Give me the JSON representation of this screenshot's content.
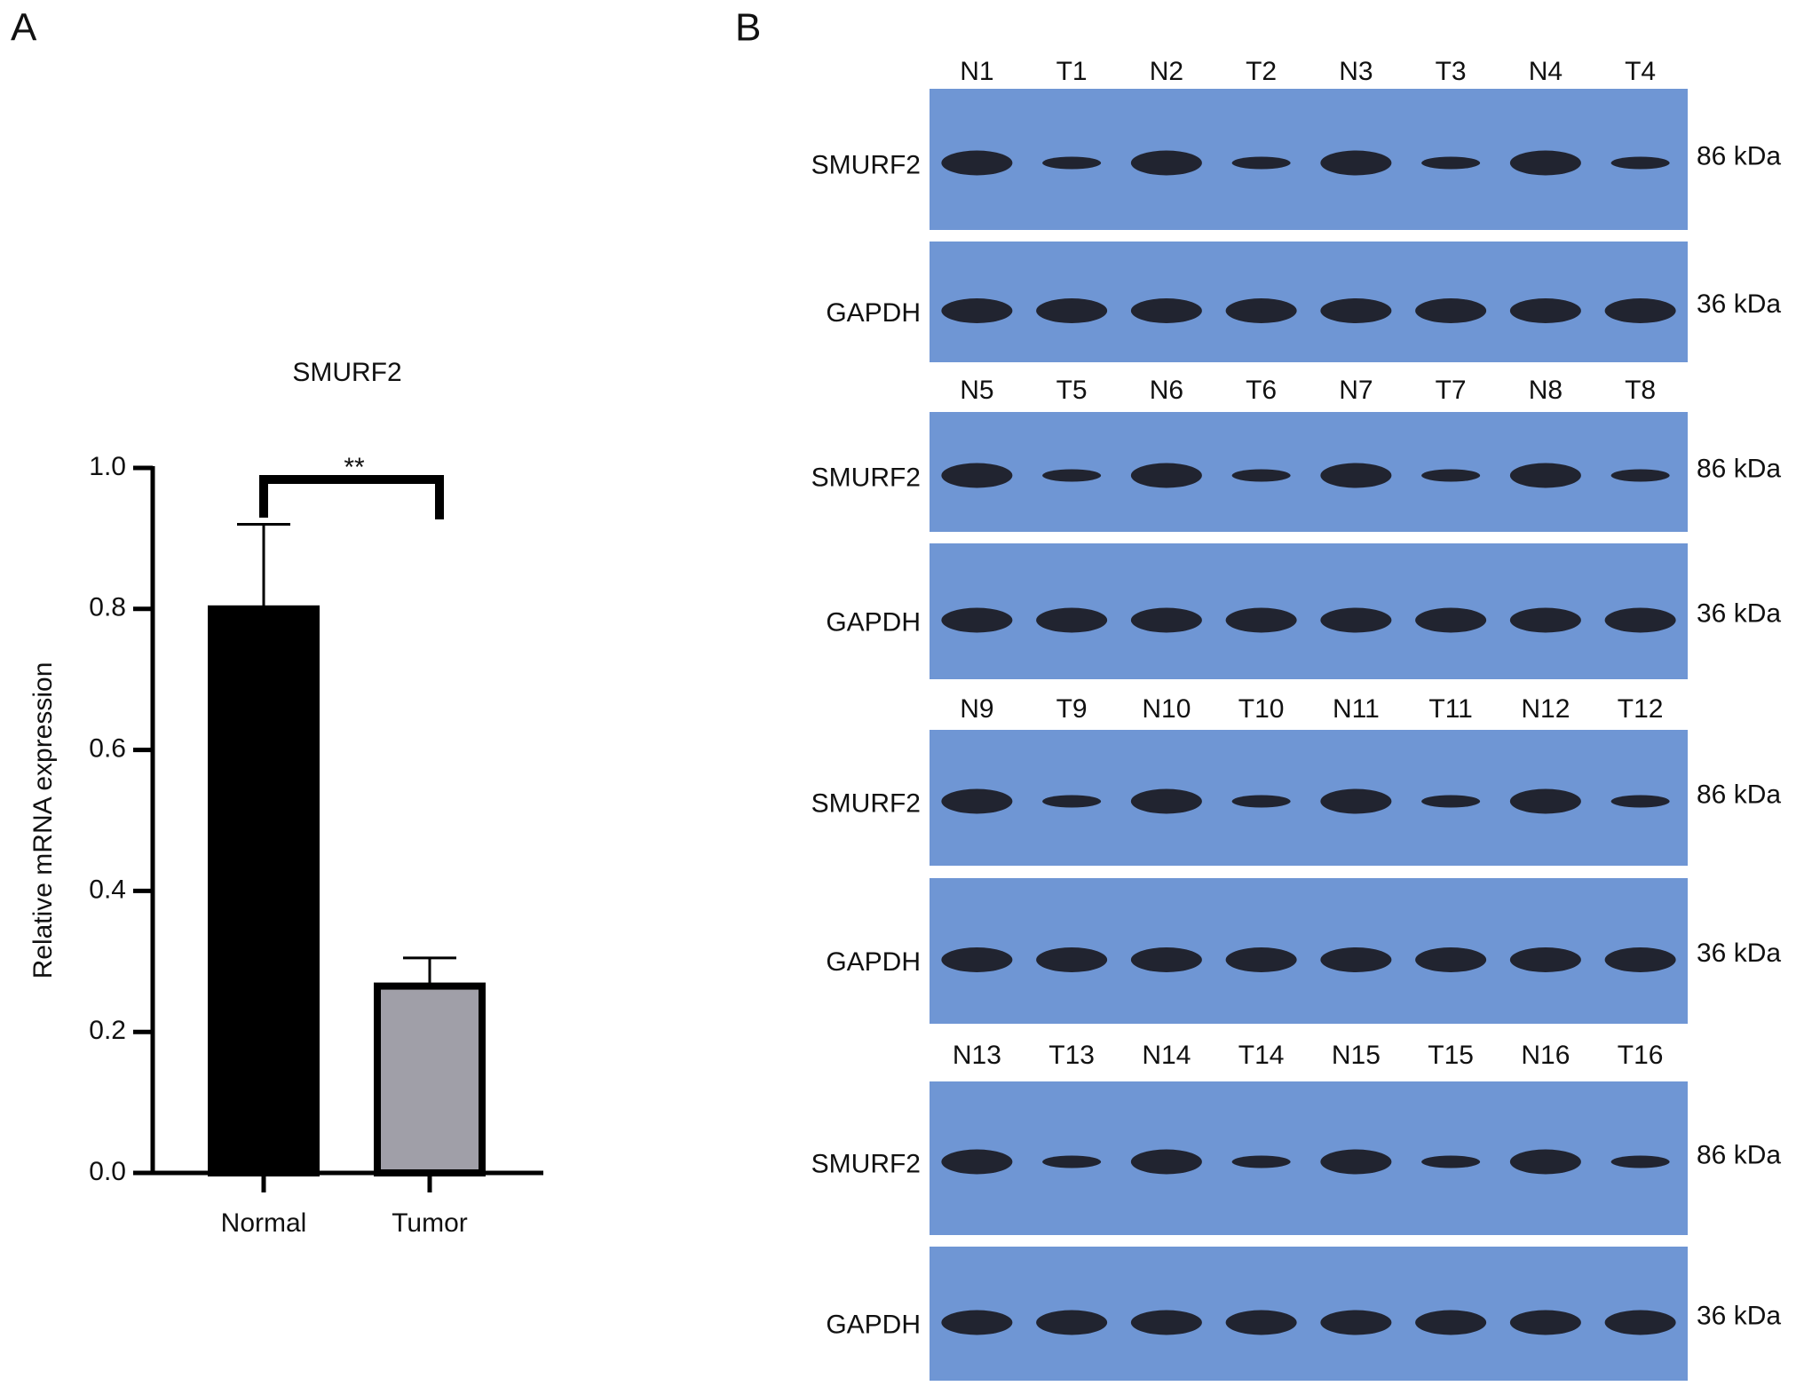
{
  "panel_labels": [
    "A",
    "B"
  ],
  "chart_data": {
    "type": "bar",
    "title": "SMURF2",
    "y_label": "Relative mRNA expression",
    "categories": [
      "Normal",
      "Tumor"
    ],
    "values": [
      0.8,
      0.265
    ],
    "errors": [
      0.12,
      0.04
    ],
    "colors": [
      "#000000",
      "#a09fa8"
    ],
    "ylim": [
      0,
      1.0
    ],
    "yticks": [
      {
        "value": 0,
        "label": "0.0"
      },
      {
        "value": 0.2,
        "label": "0.2"
      },
      {
        "value": 0.4,
        "label": "0.4"
      },
      {
        "value": 0.6,
        "label": "0.6"
      },
      {
        "value": 0.8,
        "label": "0.8"
      },
      {
        "value": 1.0,
        "label": "1.0"
      }
    ],
    "significance": "**"
  },
  "blot": {
    "blocks": [
      {
        "lanes": [
          "N1",
          "T1",
          "N2",
          "T2",
          "N3",
          "T3",
          "N4",
          "T4"
        ],
        "rows": [
          {
            "protein": "SMURF2",
            "size": "86 kDa"
          },
          {
            "protein": "GAPDH",
            "size": "36 kDa"
          }
        ]
      },
      {
        "lanes": [
          "N5",
          "T5",
          "N6",
          "T6",
          "N7",
          "T7",
          "N8",
          "T8"
        ],
        "rows": [
          {
            "protein": "SMURF2",
            "size": "86 kDa"
          },
          {
            "protein": "GAPDH",
            "size": "36 kDa"
          }
        ]
      },
      {
        "lanes": [
          "N9",
          "T9",
          "N10",
          "T10",
          "N11",
          "T11",
          "N12",
          "T12"
        ],
        "rows": [
          {
            "protein": "SMURF2",
            "size": "86 kDa"
          },
          {
            "protein": "GAPDH",
            "size": "36 kDa"
          }
        ]
      },
      {
        "lanes": [
          "N13",
          "T13",
          "N14",
          "T14",
          "N15",
          "T15",
          "N16",
          "T16"
        ],
        "rows": [
          {
            "protein": "SMURF2",
            "size": "86 kDa"
          },
          {
            "protein": "GAPDH",
            "size": "36 kDa"
          }
        ]
      }
    ]
  }
}
